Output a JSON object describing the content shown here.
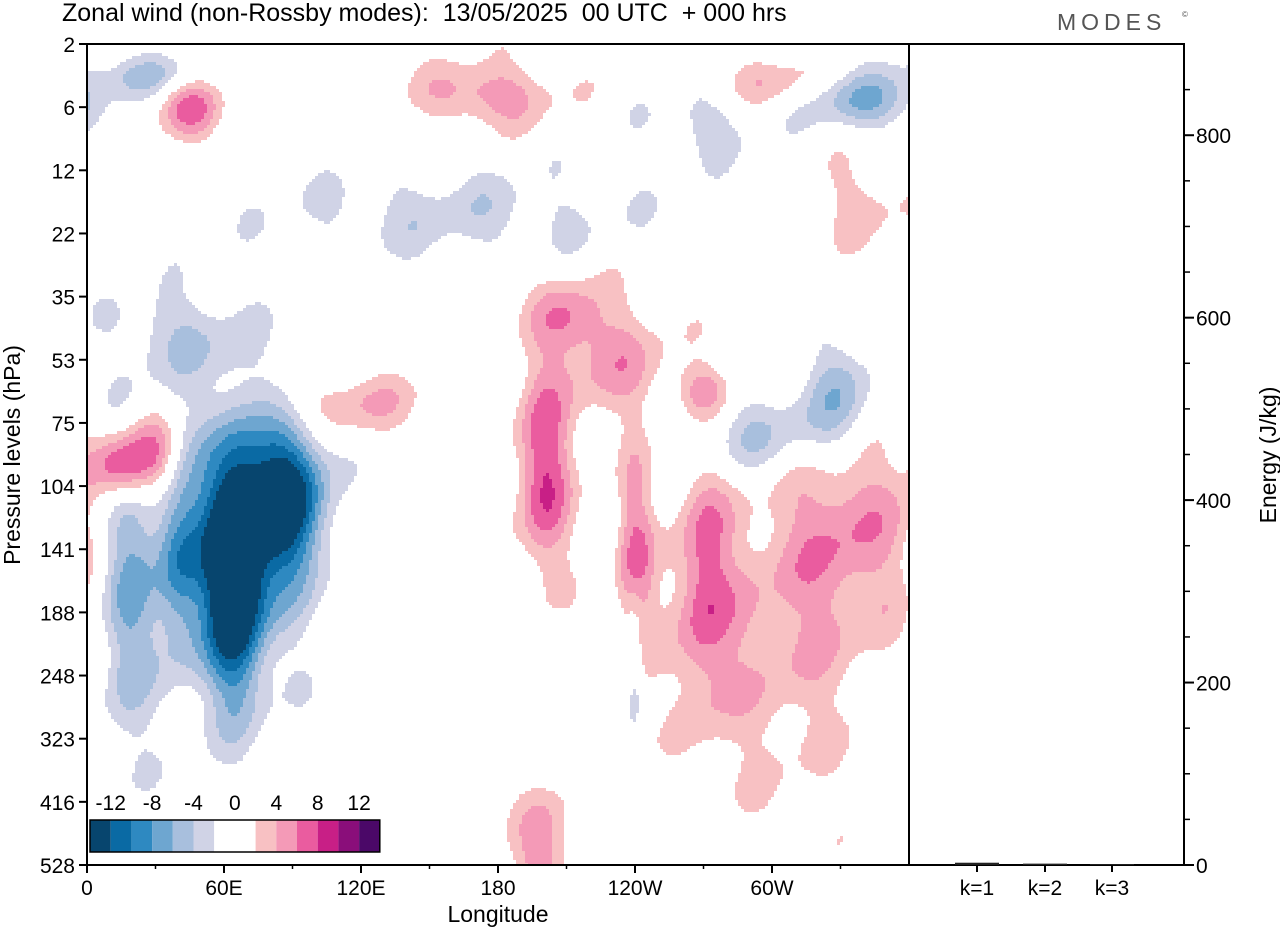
{
  "header": {
    "title": "Zonal wind (non-Rossby modes):  13/05/2025  00 UTC  + 000 hrs",
    "logo": "MODES",
    "logo_mark": "©"
  },
  "colors": {
    "blue_ramp": [
      "#d0d3e6",
      "#a8bfdd",
      "#6ea6d0",
      "#2e89c1",
      "#0a6aa4",
      "#07456e"
    ],
    "pink_ramp": [
      "#f8c1c3",
      "#f49ab7",
      "#ea5c9f",
      "#c81f86",
      "#8a0e7a",
      "#4b0868"
    ],
    "axis": "#000000"
  },
  "chart_data": [
    {
      "type": "heatmap",
      "title": "Zonal wind (non-Rossby modes):  13/05/2025  00 UTC  + 000 hrs",
      "xlabel": "Longitude",
      "ylabel": "Pressure levels (hPa)",
      "x_ticks": [
        "0",
        "60E",
        "120E",
        "180",
        "120W",
        "60W"
      ],
      "x_range_deg": [
        0,
        360
      ],
      "x_tick_deg": [
        0,
        60,
        120,
        180,
        240,
        300
      ],
      "y_ticks": [
        "2",
        "6",
        "12",
        "22",
        "35",
        "53",
        "75",
        "104",
        "141",
        "188",
        "248",
        "323",
        "416",
        "528"
      ],
      "legend": {
        "labels": [
          "-12",
          "-8",
          "-4",
          "0",
          "4",
          "8",
          "12"
        ],
        "levels": [
          -14,
          -12,
          -10,
          -8,
          -6,
          -4,
          -2,
          2,
          4,
          6,
          8,
          10,
          12,
          14
        ],
        "placement": "bottom-left"
      },
      "features": [
        {
          "sign": -1,
          "lon": 65,
          "lev": 8.3,
          "rlon": 12,
          "rlev": 1.9,
          "amp": 14.5
        },
        {
          "sign": -1,
          "lon": 88,
          "lev": 7.2,
          "rlon": 16,
          "rlev": 1.2,
          "amp": 13
        },
        {
          "sign": -1,
          "lon": 60,
          "lev": 8.0,
          "rlon": 32,
          "rlev": 2.2,
          "amp": 7
        },
        {
          "sign": -1,
          "lon": 17,
          "lev": 8.8,
          "rlon": 12,
          "rlev": 2.5,
          "amp": 5.5
        },
        {
          "sign": -1,
          "lon": 40,
          "lev": 8.2,
          "rlon": 9,
          "rlev": 1.4,
          "amp": 5
        },
        {
          "sign": -1,
          "lon": 300,
          "lev": 6.2,
          "rlon": 40,
          "rlev": 0.7,
          "amp": 4.5
        },
        {
          "sign": -1,
          "lon": 330,
          "lev": 5.5,
          "rlon": 16,
          "rlev": 0.9,
          "amp": 5.5
        },
        {
          "sign": -1,
          "lon": 240,
          "lev": 9.7,
          "rlon": 4,
          "rlev": 1.2,
          "amp": 4.5
        },
        {
          "sign": -1,
          "lon": 160,
          "lev": 2.7,
          "rlon": 80,
          "rlev": 0.7,
          "amp": 3
        },
        {
          "sign": -1,
          "lon": 25,
          "lev": 0.5,
          "rlon": 25,
          "rlev": 0.35,
          "amp": 4.5
        },
        {
          "sign": -1,
          "lon": 340,
          "lev": 0.9,
          "rlon": 25,
          "rlev": 0.45,
          "amp": 6
        },
        {
          "sign": -1,
          "lon": 270,
          "lev": 1.3,
          "rlon": 25,
          "rlev": 0.6,
          "amp": 3
        },
        {
          "sign": -1,
          "lon": 40,
          "lev": 4.6,
          "rlon": 30,
          "rlev": 0.7,
          "amp": 3.5
        },
        {
          "sign": 1,
          "lon": 15,
          "lev": 6.7,
          "rlon": 12,
          "rlev": 0.55,
          "amp": 9
        },
        {
          "sign": 1,
          "lon": 30,
          "lev": 6.5,
          "rlon": 12,
          "rlev": 0.6,
          "amp": 7
        },
        {
          "sign": 1,
          "lon": 200,
          "lev": 6.8,
          "rlon": 12,
          "rlev": 1.6,
          "amp": 8
        },
        {
          "sign": 1,
          "lon": 240,
          "lev": 8.3,
          "rlon": 8,
          "rlev": 1.8,
          "amp": 6.5
        },
        {
          "sign": 1,
          "lon": 270,
          "lev": 8.5,
          "rlon": 12,
          "rlev": 2.0,
          "amp": 6
        },
        {
          "sign": 1,
          "lon": 335,
          "lev": 7.5,
          "rlon": 30,
          "rlev": 1.8,
          "amp": 5
        },
        {
          "sign": 1,
          "lon": 300,
          "lev": 9.5,
          "rlon": 40,
          "rlev": 2.5,
          "amp": 3.5
        },
        {
          "sign": 1,
          "lon": 200,
          "lev": 12.8,
          "rlon": 12,
          "rlev": 1.0,
          "amp": 6
        },
        {
          "sign": 1,
          "lon": 230,
          "lev": 5.0,
          "rlon": 25,
          "rlev": 1.0,
          "amp": 4.5
        },
        {
          "sign": 1,
          "lon": 210,
          "lev": 4.3,
          "rlon": 15,
          "rlev": 0.6,
          "amp": 4.5
        },
        {
          "sign": 1,
          "lon": 270,
          "lev": 5.5,
          "rlon": 12,
          "rlev": 0.4,
          "amp": 5
        },
        {
          "sign": 1,
          "lon": 45,
          "lev": 1.0,
          "rlon": 14,
          "rlev": 0.5,
          "amp": 6.5
        },
        {
          "sign": 1,
          "lon": 175,
          "lev": 0.8,
          "rlon": 30,
          "rlev": 0.5,
          "amp": 5.5
        },
        {
          "sign": 1,
          "lon": 115,
          "lev": 5.7,
          "rlon": 35,
          "rlev": 0.5,
          "amp": 4
        },
        {
          "sign": 1,
          "lon": 300,
          "lev": 0.6,
          "rlon": 25,
          "rlev": 0.4,
          "amp": 3.5
        },
        {
          "sign": 1,
          "lon": 340,
          "lev": 2.5,
          "rlon": 20,
          "rlev": 0.7,
          "amp": 3
        }
      ]
    },
    {
      "type": "bar",
      "categories": [
        "k=1",
        "k=2",
        "k=3"
      ],
      "values": [
        2.5,
        1.5,
        1.0
      ],
      "ylabel": "Energy (J/kg)",
      "ylim": [
        0,
        900
      ],
      "y_ticks": [
        0,
        200,
        400,
        600,
        800
      ]
    }
  ]
}
